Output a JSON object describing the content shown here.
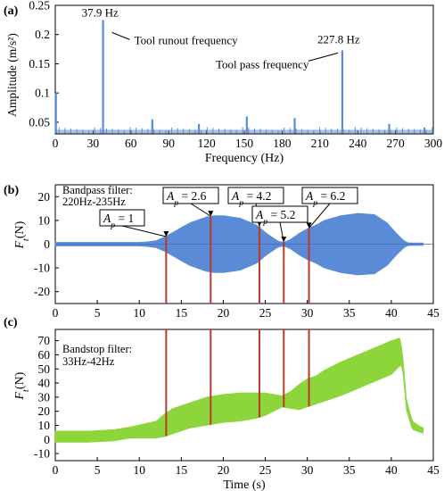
{
  "chart_data": [
    {
      "panel_label": "(a)",
      "type": "bar",
      "xlabel": "Frequency (Hz)",
      "ylabel": "Amplitude (m/s²)",
      "xlim": [
        0,
        300
      ],
      "ylim": [
        0.03,
        0.25
      ],
      "xticks": [
        0,
        30,
        60,
        90,
        120,
        150,
        180,
        210,
        240,
        270,
        300
      ],
      "yticks": [
        0.05,
        0.1,
        0.15,
        0.2,
        0.25
      ],
      "ytick_labels": [
        "0.05",
        "0.1",
        "0.15",
        "0.2",
        "0.25"
      ],
      "color": "#5b8bd6",
      "x": [
        0.5,
        37.9,
        77,
        114,
        152,
        190,
        227.8,
        265,
        293
      ],
      "values": [
        0.1,
        0.225,
        0.055,
        0.047,
        0.06,
        0.057,
        0.173,
        0.047,
        0.041
      ],
      "annotations": [
        {
          "text": "37.9 Hz",
          "x": 37.9,
          "y": 0.225
        },
        {
          "text": "Tool runout frequency",
          "x": 37.9,
          "y": 0.21
        },
        {
          "text": "227.8 Hz",
          "x": 227.8,
          "y": 0.173
        },
        {
          "text": "Tool pass frequency",
          "x": 227.8,
          "y": 0.16
        }
      ]
    },
    {
      "panel_label": "(b)",
      "type": "area",
      "ylabel": "Ft(N)",
      "xlim": [
        0,
        45
      ],
      "ylim": [
        -25,
        25
      ],
      "xticks": [
        0,
        5,
        10,
        15,
        20,
        25,
        30,
        35,
        40,
        45
      ],
      "yticks": [
        -20,
        -10,
        0,
        10,
        20
      ],
      "filter_text": [
        "Bandpass filter:",
        "220Hz-235Hz"
      ],
      "color": "#5b8bd6",
      "series": [
        {
          "x": [
            0,
            2,
            4,
            6,
            8,
            10,
            11,
            12,
            13,
            14,
            16,
            18,
            19,
            20,
            22,
            24,
            25,
            26,
            26.6,
            27.2,
            28,
            29,
            30,
            31,
            32,
            34,
            36,
            38,
            39.5,
            40.5,
            41.5,
            42,
            44
          ],
          "values": [
            0.8,
            0.8,
            0.8,
            0.8,
            0.8,
            0.8,
            1.0,
            1.5,
            3.0,
            5.0,
            9.0,
            11.5,
            12.0,
            12.0,
            11.0,
            8.0,
            5.0,
            2.5,
            1.2,
            0.8,
            2.0,
            4.5,
            6.5,
            8.0,
            10.0,
            12.0,
            13.0,
            12.5,
            9.0,
            5.0,
            1.5,
            0.6,
            0.5
          ]
        }
      ],
      "markers": [
        {
          "label": "Ap = 1",
          "x": 13.2,
          "amp": 3.2
        },
        {
          "label": "Ap = 2.6",
          "x": 18.5,
          "amp": 11.8
        },
        {
          "label": "Ap = 4.2",
          "x": 24.3,
          "amp": 7.5
        },
        {
          "label": "Ap = 5.2",
          "x": 27.2,
          "amp": 0.9
        },
        {
          "label": "Ap = 6.2",
          "x": 30.2,
          "amp": 6.8
        }
      ]
    },
    {
      "panel_label": "(c)",
      "type": "area",
      "xlabel": "Time (s)",
      "ylabel": "Ft(N)",
      "xlim": [
        0,
        45
      ],
      "ylim": [
        -15,
        78
      ],
      "xticks": [
        0,
        5,
        10,
        15,
        20,
        25,
        30,
        35,
        40,
        45
      ],
      "yticks": [
        -10,
        0,
        10,
        20,
        30,
        40,
        50,
        60,
        70
      ],
      "filter_text": [
        "Bandstop filter:",
        "33Hz-42Hz"
      ],
      "color": "#8cd63c",
      "series": [
        {
          "x": [
            0,
            4,
            7,
            9,
            10.5,
            12,
            13,
            14,
            16,
            18,
            19,
            20,
            22,
            24,
            25,
            26,
            27,
            28,
            29,
            30,
            31,
            32,
            34,
            36,
            38,
            40,
            41,
            41.3,
            41.8,
            42.5,
            43.5,
            44
          ],
          "values": [
            2,
            2,
            3,
            5,
            6,
            7,
            10,
            13,
            17,
            20,
            21,
            22,
            23,
            24,
            25,
            26,
            27,
            28,
            30,
            33,
            35,
            38,
            43,
            48,
            53,
            58,
            62,
            58,
            25,
            10,
            7,
            6
          ],
          "half_width": [
            4,
            4,
            4,
            4,
            5,
            6,
            8,
            9,
            9,
            10,
            10,
            10,
            10,
            9,
            8,
            6,
            4,
            6,
            9,
            10,
            10,
            11,
            12,
            12,
            12,
            12,
            10,
            6,
            4,
            3,
            2,
            2
          ]
        }
      ],
      "marker_x": [
        13.2,
        18.5,
        24.3,
        27.2,
        30.2
      ]
    }
  ]
}
